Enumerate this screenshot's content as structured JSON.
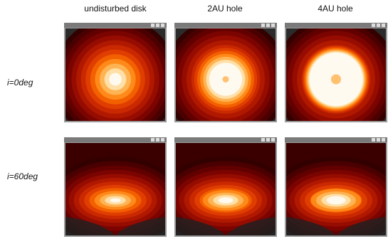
{
  "columns": [
    "undisturbed disk",
    "2AU hole",
    "4AU hole"
  ],
  "rows": [
    "i=0deg",
    "i=60deg"
  ]
}
